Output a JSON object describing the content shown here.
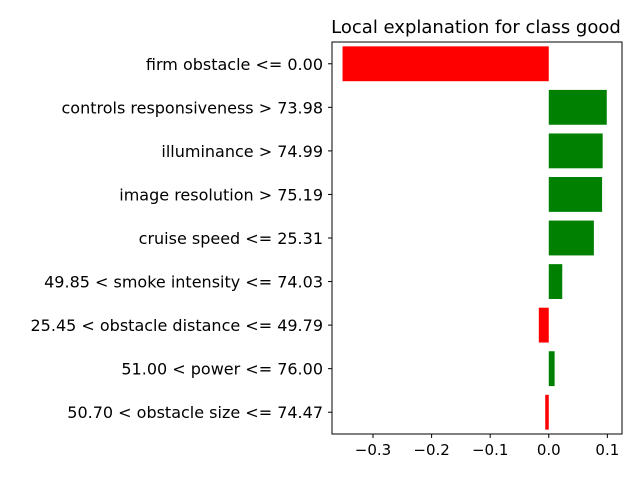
{
  "chart_data": {
    "type": "bar",
    "orientation": "horizontal",
    "title": "Local explanation for class good",
    "xlabel": "",
    "ylabel": "",
    "xlim": [
      -0.37,
      0.125
    ],
    "grid": false,
    "legend": "none",
    "positive_color": "#008000",
    "negative_color": "#ff0000",
    "categories": [
      "firm obstacle <= 0.00",
      "controls responsiveness > 73.98",
      "illuminance > 74.99",
      "image resolution > 75.19",
      "cruise speed <= 25.31",
      "49.85 < smoke intensity <= 74.03",
      "25.45 < obstacle distance <= 49.79",
      "51.00 < power <= 76.00",
      "50.70 < obstacle size <= 74.47"
    ],
    "values": [
      -0.352,
      0.099,
      0.092,
      0.091,
      0.077,
      0.023,
      -0.017,
      0.01,
      -0.006
    ],
    "xticks": [
      -0.3,
      -0.2,
      -0.1,
      0.0,
      0.1
    ],
    "xtick_labels": [
      "−0.3",
      "−0.2",
      "−0.1",
      "0.0",
      "0.1"
    ]
  }
}
